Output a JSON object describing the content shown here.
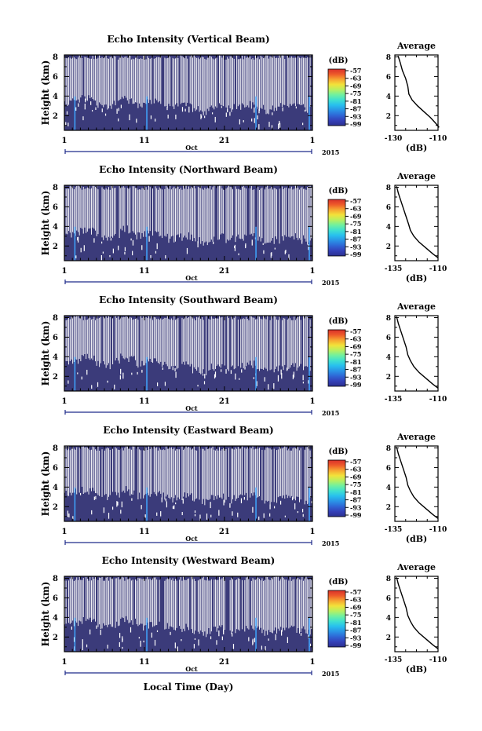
{
  "xlabel": "Local Time (Day)",
  "colorbar": {
    "unit": "(dB)",
    "ticks": [
      "-57",
      "-63",
      "-69",
      "-75",
      "-81",
      "-87",
      "-93",
      "-99"
    ],
    "colors": [
      "#2b2f8f",
      "#3440b8",
      "#2e66d6",
      "#2a93e6",
      "#27c0ee",
      "#3fe0d0",
      "#6ff0a0",
      "#b8f060",
      "#f2e23a",
      "#f7a531",
      "#ee5a2a",
      "#d9302a"
    ]
  },
  "colors": {
    "echo_fill": "#3b3b7a",
    "gap": "#ffffff",
    "streak": "#3fa6ff"
  },
  "chart_data": [
    {
      "type": "heatmap",
      "title": "Echo Intensity (Vertical Beam)",
      "ylabel": "Height (km)",
      "yticks": [
        2,
        4,
        6,
        8
      ],
      "ylim": [
        0.5,
        8.2
      ],
      "xticks": [
        "1",
        "11",
        "21",
        "1"
      ],
      "month_label": "Oct",
      "year_label": "2015",
      "boundary_km": [
        3.3,
        3.5,
        3.8,
        3.7,
        3.2,
        3.0,
        3.4,
        3.9,
        3.6,
        3.1,
        3.3,
        3.5,
        3.2,
        2.9,
        3.0,
        3.1,
        2.6,
        2.4,
        2.8,
        3.0,
        2.7,
        2.9,
        3.0,
        3.1,
        2.8,
        2.5,
        2.7,
        2.9,
        3.0,
        2.8,
        2.6
      ],
      "profile": {
        "title": "Average",
        "xlabel": "(dB)",
        "xticks": [
          "-130",
          "-110"
        ],
        "xlim": [
          -130,
          -110
        ],
        "yticks": [
          2,
          4,
          6,
          8
        ],
        "ylim": [
          0.5,
          8.2
        ],
        "x": [
          -109.5,
          -111,
          -113.5,
          -116.5,
          -119.5,
          -122,
          -123.5,
          -124,
          -125,
          -126.5,
          -127.5,
          -128.5
        ],
        "y": [
          0.8,
          1.2,
          1.8,
          2.4,
          3.0,
          3.6,
          4.2,
          5.0,
          5.8,
          6.6,
          7.4,
          8.1
        ]
      }
    },
    {
      "type": "heatmap",
      "title": "Echo Intensity (Northward Beam)",
      "ylabel": "Height (km)",
      "yticks": [
        2,
        4,
        6,
        8
      ],
      "ylim": [
        0.5,
        8.2
      ],
      "xticks": [
        "1",
        "11",
        "21",
        "1"
      ],
      "month_label": "Oct",
      "year_label": "2015",
      "boundary_km": [
        3.2,
        3.4,
        3.6,
        3.5,
        3.0,
        2.9,
        3.2,
        3.7,
        3.4,
        3.0,
        3.2,
        3.3,
        3.0,
        2.7,
        2.9,
        3.0,
        2.5,
        2.3,
        2.7,
        2.9,
        2.6,
        2.8,
        2.9,
        3.0,
        2.7,
        2.5,
        2.6,
        2.8,
        2.9,
        2.7,
        2.5
      ],
      "profile": {
        "title": "Average",
        "xlabel": "(dB)",
        "xticks": [
          "-135",
          "-110"
        ],
        "xlim": [
          -135,
          -110
        ],
        "yticks": [
          2,
          4,
          6,
          8
        ],
        "ylim": [
          0.5,
          8.2
        ],
        "x": [
          -110,
          -113,
          -117,
          -121,
          -124,
          -126,
          -127,
          -128.5,
          -130,
          -131.5,
          -133,
          -134
        ],
        "y": [
          0.8,
          1.2,
          1.8,
          2.4,
          3.0,
          3.6,
          4.2,
          5.0,
          5.8,
          6.6,
          7.4,
          8.1
        ]
      }
    },
    {
      "type": "heatmap",
      "title": "Echo Intensity (Southward Beam)",
      "ylabel": "Height (km)",
      "yticks": [
        2,
        4,
        6,
        8
      ],
      "ylim": [
        0.5,
        8.2
      ],
      "xticks": [
        "1",
        "11",
        "21",
        "1"
      ],
      "month_label": "Oct",
      "year_label": "2015",
      "boundary_km": [
        3.4,
        3.6,
        3.9,
        3.8,
        3.3,
        3.1,
        3.5,
        4.0,
        3.7,
        3.2,
        3.4,
        3.6,
        3.3,
        3.0,
        3.1,
        3.2,
        2.7,
        2.5,
        2.9,
        3.1,
        2.8,
        3.0,
        3.1,
        3.2,
        2.9,
        2.6,
        2.8,
        3.0,
        3.1,
        2.9,
        2.7
      ],
      "profile": {
        "title": "Average",
        "xlabel": "",
        "xticks": [
          "-135",
          "-110"
        ],
        "xlim": [
          -135,
          -110
        ],
        "yticks": [
          2,
          4,
          6,
          8
        ],
        "ylim": [
          0.5,
          8.2
        ],
        "x": [
          -110,
          -113,
          -117,
          -121,
          -124,
          -126,
          -127.5,
          -128.5,
          -130,
          -131.5,
          -133,
          -134
        ],
        "y": [
          0.8,
          1.2,
          1.8,
          2.4,
          3.0,
          3.6,
          4.2,
          5.0,
          5.8,
          6.6,
          7.4,
          8.1
        ]
      }
    },
    {
      "type": "heatmap",
      "title": "Echo Intensity (Eastward Beam)",
      "ylabel": "Height (km)",
      "yticks": [
        2,
        4,
        6,
        8
      ],
      "ylim": [
        0.5,
        8.2
      ],
      "xticks": [
        "1",
        "11",
        "21",
        "1"
      ],
      "month_label": "Oct",
      "year_label": "2015",
      "boundary_km": [
        3.3,
        3.5,
        3.7,
        3.6,
        3.1,
        3.0,
        3.3,
        3.8,
        3.5,
        3.1,
        3.3,
        3.4,
        3.1,
        2.8,
        3.0,
        3.1,
        2.6,
        2.4,
        2.8,
        3.0,
        2.7,
        2.9,
        3.0,
        3.1,
        2.8,
        2.5,
        2.7,
        2.9,
        3.0,
        2.8,
        2.6
      ],
      "profile": {
        "title": "Average",
        "xlabel": "(dB)",
        "xticks": [
          "-135",
          "-110"
        ],
        "xlim": [
          -135,
          -110
        ],
        "yticks": [
          2,
          4,
          6,
          8
        ],
        "ylim": [
          0.5,
          8.2
        ],
        "x": [
          -110,
          -113,
          -117,
          -121,
          -124,
          -126,
          -127.5,
          -128.5,
          -130,
          -131.5,
          -133,
          -134
        ],
        "y": [
          0.8,
          1.2,
          1.8,
          2.4,
          3.0,
          3.6,
          4.2,
          5.0,
          5.8,
          6.6,
          7.4,
          8.1
        ]
      }
    },
    {
      "type": "heatmap",
      "title": "Echo Intensity (Westward Beam)",
      "ylabel": "Height (km)",
      "yticks": [
        2,
        4,
        6,
        8
      ],
      "ylim": [
        0.5,
        8.2
      ],
      "xticks": [
        "1",
        "11",
        "21",
        "1"
      ],
      "month_label": "Oct",
      "year_label": "2015",
      "boundary_km": [
        3.2,
        3.4,
        3.7,
        3.6,
        3.1,
        2.9,
        3.3,
        3.8,
        3.5,
        3.0,
        3.2,
        3.4,
        3.1,
        2.8,
        2.9,
        3.0,
        2.6,
        2.4,
        2.7,
        2.9,
        2.6,
        2.8,
        2.9,
        3.0,
        2.7,
        2.5,
        2.6,
        2.8,
        2.9,
        2.7,
        2.5
      ],
      "profile": {
        "title": "Average",
        "xlabel": "(dB)",
        "xticks": [
          "-135",
          "-110"
        ],
        "xlim": [
          -135,
          -110
        ],
        "yticks": [
          2,
          4,
          6,
          8
        ],
        "ylim": [
          0.5,
          8.2
        ],
        "x": [
          -110,
          -113,
          -117,
          -121,
          -124,
          -126,
          -127.5,
          -128.5,
          -130,
          -131.5,
          -133,
          -134
        ],
        "y": [
          0.8,
          1.2,
          1.8,
          2.4,
          3.0,
          3.6,
          4.2,
          5.0,
          5.8,
          6.6,
          7.4,
          8.1
        ]
      }
    }
  ]
}
